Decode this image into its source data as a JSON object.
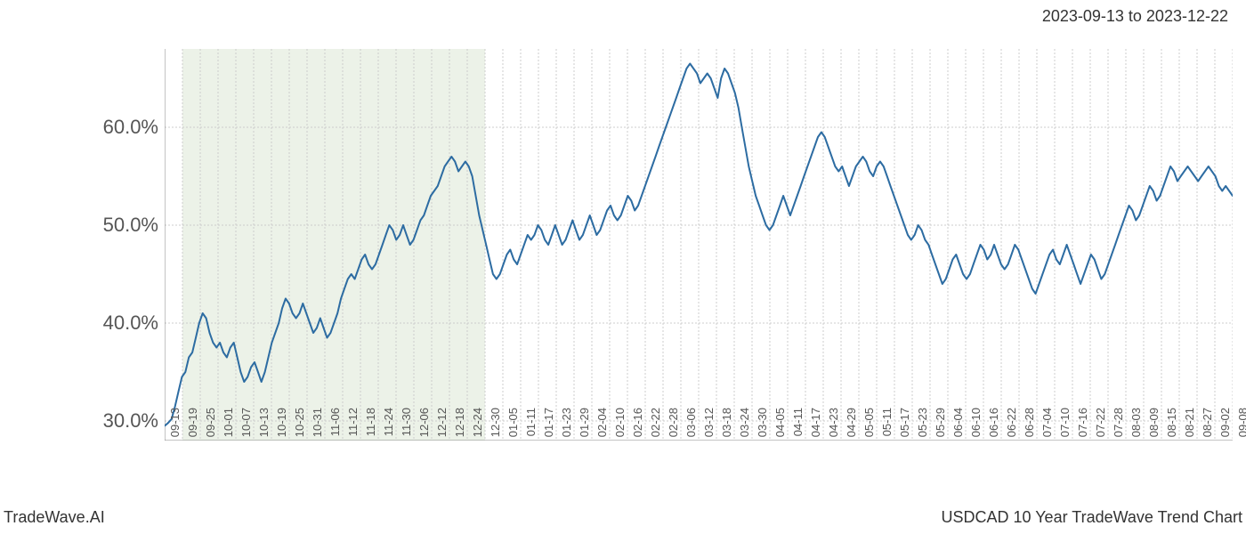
{
  "header": {
    "date_range": "2023-09-13 to 2023-12-22"
  },
  "footer": {
    "brand": "TradeWave.AI",
    "chart_title": "USDCAD 10 Year TradeWave Trend Chart"
  },
  "chart": {
    "type": "line",
    "background_color": "#ffffff",
    "grid_color": "#cccccc",
    "grid_dash": "2,2",
    "line_color": "#2d6ca2",
    "line_width": 2,
    "highlight_band": {
      "fill": "#dce8d6",
      "opacity": 0.55,
      "start_label": "09-19",
      "end_label": "12-30"
    },
    "y_axis": {
      "min": 28,
      "max": 68,
      "ticks": [
        30,
        40,
        50,
        60
      ],
      "tick_labels": [
        "30.0%",
        "40.0%",
        "50.0%",
        "60.0%"
      ],
      "label_fontsize": 22,
      "label_color": "#555555"
    },
    "x_axis": {
      "tick_labels": [
        "09-13",
        "09-19",
        "09-25",
        "10-01",
        "10-07",
        "10-13",
        "10-19",
        "10-25",
        "10-31",
        "11-06",
        "11-12",
        "11-18",
        "11-24",
        "11-30",
        "12-06",
        "12-12",
        "12-18",
        "12-24",
        "12-30",
        "01-05",
        "01-11",
        "01-17",
        "01-23",
        "01-29",
        "02-04",
        "02-10",
        "02-16",
        "02-22",
        "02-28",
        "03-06",
        "03-12",
        "03-18",
        "03-24",
        "03-30",
        "04-05",
        "04-11",
        "04-17",
        "04-23",
        "04-29",
        "05-05",
        "05-11",
        "05-17",
        "05-23",
        "05-29",
        "06-04",
        "06-10",
        "06-16",
        "06-22",
        "06-28",
        "07-04",
        "07-10",
        "07-16",
        "07-22",
        "07-28",
        "08-03",
        "08-09",
        "08-15",
        "08-21",
        "08-27",
        "09-02",
        "09-08"
      ],
      "label_fontsize": 13,
      "label_color": "#555555"
    },
    "series": {
      "name": "USDCAD Trend",
      "values": [
        29.5,
        29.8,
        30.2,
        31.5,
        33.0,
        34.5,
        35.0,
        36.5,
        37.0,
        38.5,
        40.0,
        41.0,
        40.5,
        39.0,
        38.0,
        37.5,
        38.0,
        37.0,
        36.5,
        37.5,
        38.0,
        36.5,
        35.0,
        34.0,
        34.5,
        35.5,
        36.0,
        35.0,
        34.0,
        35.0,
        36.5,
        38.0,
        39.0,
        40.0,
        41.5,
        42.5,
        42.0,
        41.0,
        40.5,
        41.0,
        42.0,
        41.0,
        40.0,
        39.0,
        39.5,
        40.5,
        39.5,
        38.5,
        39.0,
        40.0,
        41.0,
        42.5,
        43.5,
        44.5,
        45.0,
        44.5,
        45.5,
        46.5,
        47.0,
        46.0,
        45.5,
        46.0,
        47.0,
        48.0,
        49.0,
        50.0,
        49.5,
        48.5,
        49.0,
        50.0,
        49.0,
        48.0,
        48.5,
        49.5,
        50.5,
        51.0,
        52.0,
        53.0,
        53.5,
        54.0,
        55.0,
        56.0,
        56.5,
        57.0,
        56.5,
        55.5,
        56.0,
        56.5,
        56.0,
        55.0,
        53.0,
        51.0,
        49.5,
        48.0,
        46.5,
        45.0,
        44.5,
        45.0,
        46.0,
        47.0,
        47.5,
        46.5,
        46.0,
        47.0,
        48.0,
        49.0,
        48.5,
        49.0,
        50.0,
        49.5,
        48.5,
        48.0,
        49.0,
        50.0,
        49.0,
        48.0,
        48.5,
        49.5,
        50.5,
        49.5,
        48.5,
        49.0,
        50.0,
        51.0,
        50.0,
        49.0,
        49.5,
        50.5,
        51.5,
        52.0,
        51.0,
        50.5,
        51.0,
        52.0,
        53.0,
        52.5,
        51.5,
        52.0,
        53.0,
        54.0,
        55.0,
        56.0,
        57.0,
        58.0,
        59.0,
        60.0,
        61.0,
        62.0,
        63.0,
        64.0,
        65.0,
        66.0,
        66.5,
        66.0,
        65.5,
        64.5,
        65.0,
        65.5,
        65.0,
        64.0,
        63.0,
        65.0,
        66.0,
        65.5,
        64.5,
        63.5,
        62.0,
        60.0,
        58.0,
        56.0,
        54.5,
        53.0,
        52.0,
        51.0,
        50.0,
        49.5,
        50.0,
        51.0,
        52.0,
        53.0,
        52.0,
        51.0,
        52.0,
        53.0,
        54.0,
        55.0,
        56.0,
        57.0,
        58.0,
        59.0,
        59.5,
        59.0,
        58.0,
        57.0,
        56.0,
        55.5,
        56.0,
        55.0,
        54.0,
        55.0,
        56.0,
        56.5,
        57.0,
        56.5,
        55.5,
        55.0,
        56.0,
        56.5,
        56.0,
        55.0,
        54.0,
        53.0,
        52.0,
        51.0,
        50.0,
        49.0,
        48.5,
        49.0,
        50.0,
        49.5,
        48.5,
        48.0,
        47.0,
        46.0,
        45.0,
        44.0,
        44.5,
        45.5,
        46.5,
        47.0,
        46.0,
        45.0,
        44.5,
        45.0,
        46.0,
        47.0,
        48.0,
        47.5,
        46.5,
        47.0,
        48.0,
        47.0,
        46.0,
        45.5,
        46.0,
        47.0,
        48.0,
        47.5,
        46.5,
        45.5,
        44.5,
        43.5,
        43.0,
        44.0,
        45.0,
        46.0,
        47.0,
        47.5,
        46.5,
        46.0,
        47.0,
        48.0,
        47.0,
        46.0,
        45.0,
        44.0,
        45.0,
        46.0,
        47.0,
        46.5,
        45.5,
        44.5,
        45.0,
        46.0,
        47.0,
        48.0,
        49.0,
        50.0,
        51.0,
        52.0,
        51.5,
        50.5,
        51.0,
        52.0,
        53.0,
        54.0,
        53.5,
        52.5,
        53.0,
        54.0,
        55.0,
        56.0,
        55.5,
        54.5,
        55.0,
        55.5,
        56.0,
        55.5,
        55.0,
        54.5,
        55.0,
        55.5,
        56.0,
        55.5,
        55.0,
        54.0,
        53.5,
        54.0,
        53.5,
        53.0
      ]
    }
  }
}
